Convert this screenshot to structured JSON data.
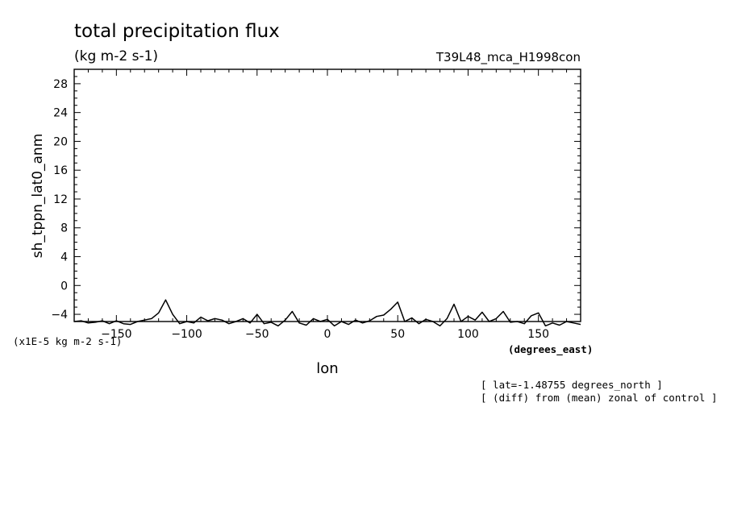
{
  "header": {
    "title": "total precipitation flux",
    "units": "(kg m-2 s-1)",
    "run_name": "T39L48_mca_H1998con"
  },
  "footer": {
    "scale_note": "(x1E-5 kg m-2 s-1)",
    "x_units": "(degrees_east)",
    "note_lat": "[ lat=-1.48755 degrees_north ]",
    "note_diff": "[ (diff) from (mean) zonal of control ]"
  },
  "chart_data": {
    "type": "line",
    "title": "total precipitation flux",
    "subtitle": "(kg m-2 s-1)",
    "xlabel": "lon",
    "ylabel": "sh_tppn_lat0_anm",
    "xlim": [
      -180,
      180
    ],
    "ylim": [
      -5,
      30
    ],
    "x_ticks": [
      -150,
      -100,
      -50,
      0,
      50,
      100,
      150
    ],
    "y_ticks": [
      -4,
      0,
      4,
      8,
      12,
      16,
      20,
      24,
      28
    ],
    "grid": false,
    "series": [
      {
        "x": [
          -180,
          -175,
          -170,
          -165,
          -160,
          -155,
          -150,
          -145,
          -140,
          -135,
          -130,
          -125,
          -120,
          -115,
          -110,
          -105,
          -100,
          -95,
          -90,
          -85,
          -80,
          -75,
          -70,
          -65,
          -60,
          -55,
          -50,
          -45,
          -40,
          -35,
          -30,
          -25,
          -20,
          -15,
          -10,
          -5,
          0,
          5,
          10,
          15,
          20,
          25,
          30,
          35,
          40,
          45,
          50,
          55,
          60,
          65,
          70,
          75,
          80,
          85,
          90,
          95,
          100,
          105,
          110,
          115,
          120,
          125,
          130,
          135,
          140,
          145,
          150,
          155,
          160,
          165,
          170,
          175,
          180
        ],
        "values": [
          -5.0,
          -4.9,
          -5.2,
          -5.1,
          -4.9,
          -5.3,
          -4.9,
          -5.3,
          -5.4,
          -5.0,
          -4.8,
          -4.6,
          -3.8,
          -2.0,
          -4.0,
          -5.3,
          -5.0,
          -5.2,
          -4.4,
          -4.9,
          -4.6,
          -4.8,
          -5.3,
          -5.0,
          -4.6,
          -5.2,
          -4.0,
          -5.3,
          -5.1,
          -5.6,
          -4.8,
          -3.6,
          -5.2,
          -5.5,
          -4.6,
          -5.0,
          -4.7,
          -5.6,
          -5.0,
          -5.4,
          -4.8,
          -5.2,
          -4.9,
          -4.3,
          -4.1,
          -3.3,
          -2.3,
          -5.0,
          -4.5,
          -5.3,
          -4.7,
          -5.0,
          -5.6,
          -4.6,
          -2.6,
          -5.0,
          -4.3,
          -4.8,
          -3.7,
          -5.0,
          -4.6,
          -3.6,
          -5.1,
          -5.0,
          -5.3,
          -4.2,
          -3.8,
          -5.6,
          -5.2,
          -5.5,
          -5.0,
          -5.2,
          -5.4
        ]
      }
    ]
  }
}
